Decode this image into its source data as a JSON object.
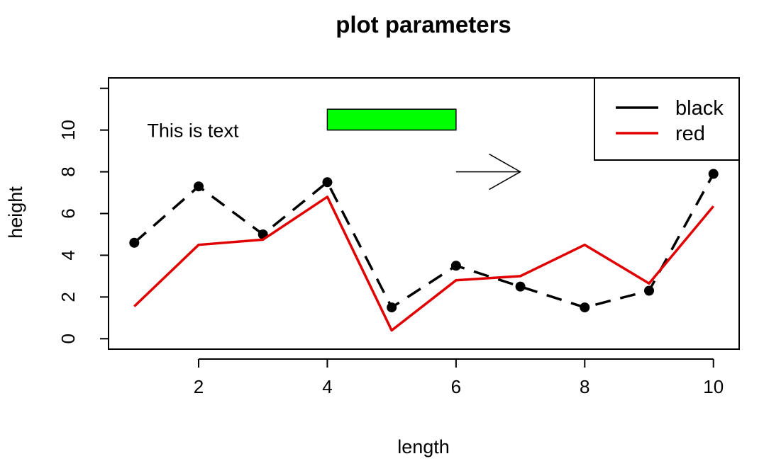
{
  "chart_data": {
    "type": "line",
    "title": "plot parameters",
    "xlabel": "length",
    "ylabel": "height",
    "xlim": [
      0.6,
      10.4
    ],
    "ylim": [
      -0.5,
      12.5
    ],
    "xticks": [
      2,
      4,
      6,
      8,
      10
    ],
    "yticks": [
      0,
      2,
      4,
      6,
      8,
      10
    ],
    "grid": false,
    "legend_position": "top-right",
    "x": [
      1,
      2,
      3,
      4,
      5,
      6,
      7,
      8,
      9,
      10
    ],
    "series": [
      {
        "name": "black",
        "color": "#000000",
        "line_style": "dashed",
        "marker": "filled-circle",
        "values": [
          4.6,
          7.3,
          5.0,
          7.5,
          1.5,
          3.5,
          2.5,
          1.5,
          2.3,
          7.9
        ]
      },
      {
        "name": "red",
        "color": "#e00000",
        "line_style": "solid",
        "marker": "none",
        "values": [
          1.55,
          4.5,
          4.75,
          6.8,
          0.4,
          2.8,
          3.0,
          4.5,
          2.65,
          6.35
        ]
      }
    ],
    "annotations": {
      "text": {
        "label": "This is text",
        "x": 1.2,
        "y": 10
      },
      "rect": {
        "x0": 4,
        "y0": 10,
        "x1": 6,
        "y1": 11,
        "fill": "#00ff00"
      },
      "arrow": {
        "x0": 6,
        "y0": 8,
        "x1": 7,
        "y1": 8
      }
    }
  }
}
